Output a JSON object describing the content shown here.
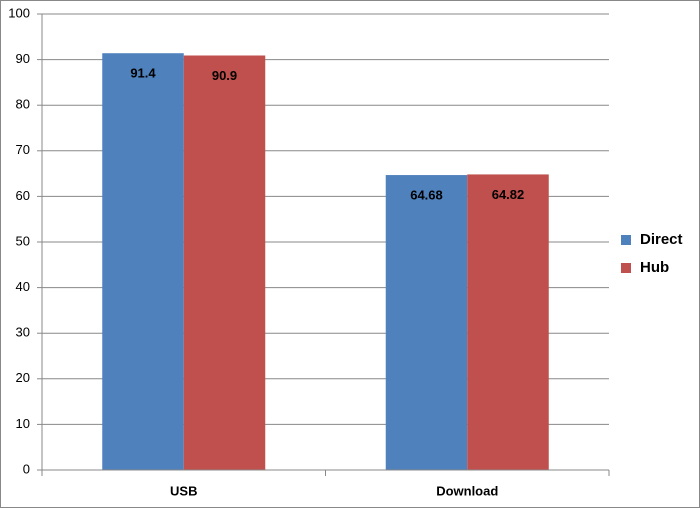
{
  "chart_data": {
    "type": "bar",
    "categories": [
      "USB",
      "Download"
    ],
    "series": [
      {
        "name": "Direct",
        "color": "#4f81bd",
        "values": [
          91.4,
          64.68
        ]
      },
      {
        "name": "Hub",
        "color": "#c0504d",
        "values": [
          90.9,
          64.82
        ]
      }
    ],
    "ylim": [
      0,
      100
    ],
    "yticks": [
      0,
      10,
      20,
      30,
      40,
      50,
      60,
      70,
      80,
      90,
      100
    ],
    "grid": true,
    "legend": "right"
  }
}
